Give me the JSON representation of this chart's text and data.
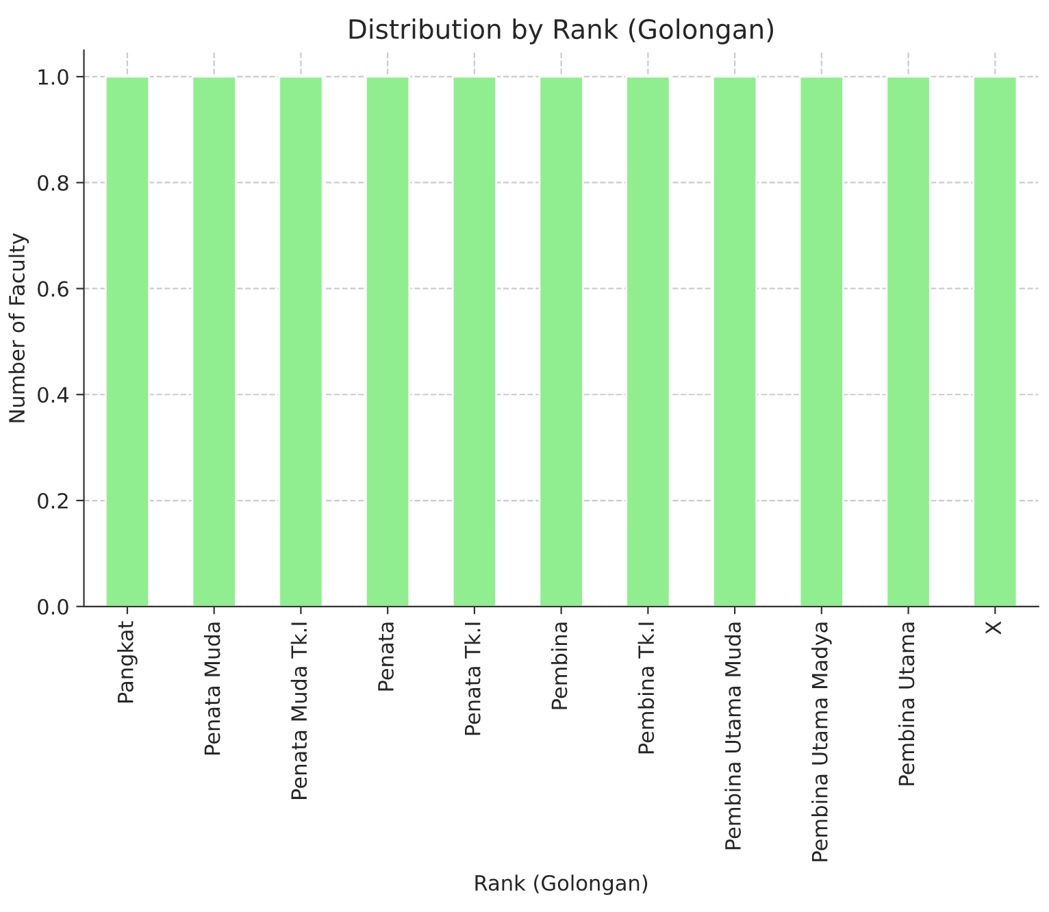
{
  "chart_data": {
    "type": "bar",
    "title": "Distribution by Rank (Golongan)",
    "xlabel": "Rank (Golongan)",
    "ylabel": "Number of Faculty",
    "categories": [
      "Pangkat",
      "Penata Muda",
      "Penata Muda Tk.I",
      "Penata",
      "Penata Tk.I",
      "Pembina",
      "Pembina Tk.I",
      "Pembina Utama Muda",
      "Pembina Utama Madya",
      "Pembina Utama",
      "X"
    ],
    "values": [
      1,
      1,
      1,
      1,
      1,
      1,
      1,
      1,
      1,
      1,
      1
    ],
    "color": "#90ee90",
    "ylim": [
      0,
      1.05
    ],
    "yticks": [
      {
        "value": 0,
        "label": "0.0"
      },
      {
        "value": 0.2,
        "label": "0.2"
      },
      {
        "value": 0.4,
        "label": "0.4"
      },
      {
        "value": 0.6,
        "label": "0.6"
      },
      {
        "value": 0.8,
        "label": "0.8"
      },
      {
        "value": 1.0,
        "label": "1.0"
      }
    ],
    "grid": true
  }
}
